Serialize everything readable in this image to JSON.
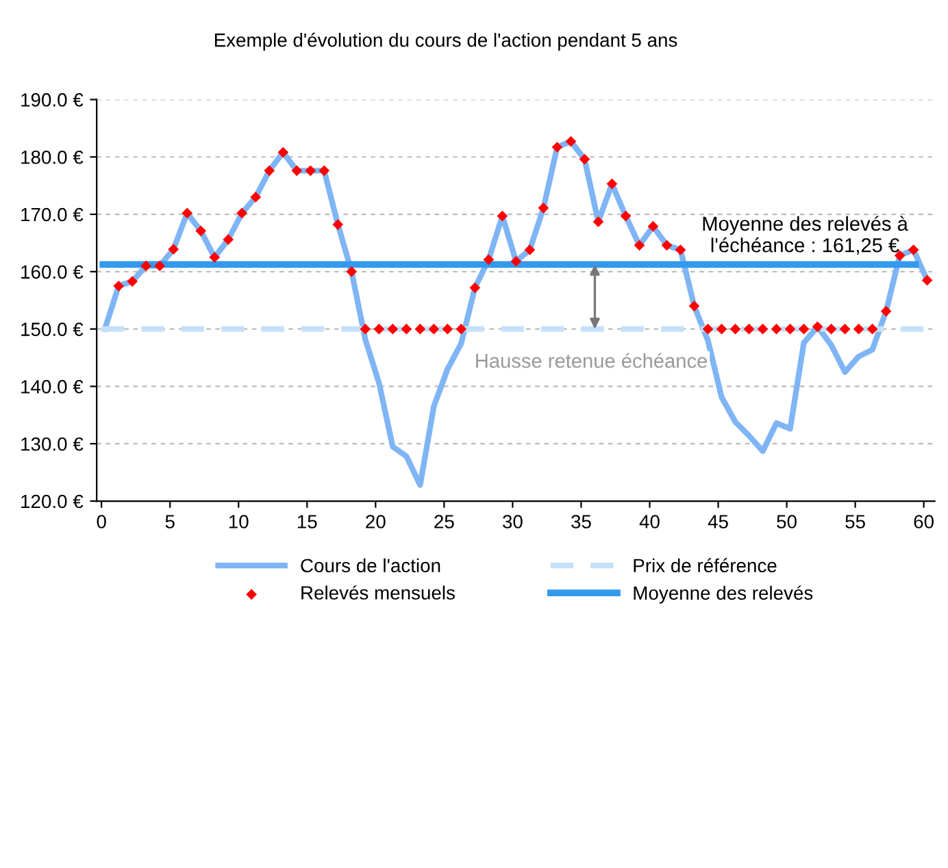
{
  "chart_data": {
    "type": "line",
    "title": "Exemple d'évolution du cours de l'action pendant 5 ans",
    "series": [
      {
        "name": "Cours de l'action",
        "color": "#7fb5f5",
        "marker": "none",
        "line_style": "solid",
        "x": [
          0.25,
          1.25,
          2.25,
          3.25,
          4.25,
          5.25,
          6.25,
          7.25,
          8.25,
          9.25,
          10.25,
          11.25,
          12.25,
          13.25,
          14.25,
          15.25,
          16.25,
          17.25,
          18.25,
          19.25,
          20.25,
          21.25,
          22.25,
          23.25,
          24.25,
          25.25,
          26.25,
          27.25,
          28.25,
          29.25,
          30.25,
          31.25,
          32.25,
          33.25,
          34.25,
          35.25,
          36.25,
          37.25,
          38.25,
          39.25,
          40.25,
          41.25,
          42.25,
          43.25,
          44.25,
          45.25,
          46.25,
          47.25,
          48.25,
          49.25,
          50.25,
          51.25,
          52.25,
          53.25,
          54.25,
          55.25,
          56.25,
          57.25,
          58.25,
          59.25,
          60.25
        ],
        "values": [
          150.0,
          157.5,
          158.3,
          161.0,
          161.0,
          163.9,
          170.2,
          167.1,
          162.5,
          165.6,
          170.2,
          173.0,
          177.6,
          180.8,
          177.6,
          177.6,
          177.6,
          168.2,
          160.0,
          148.2,
          140.6,
          129.5,
          127.8,
          122.8,
          136.5,
          143.0,
          147.5,
          157.2,
          162.1,
          169.7,
          161.8,
          163.8,
          171.1,
          181.7,
          182.7,
          179.6,
          168.7,
          175.3,
          169.7,
          164.6,
          167.9,
          164.6,
          163.8,
          154.0,
          148.0,
          138.1,
          133.8,
          131.4,
          128.7,
          133.6,
          132.6,
          147.6,
          150.4,
          147.2,
          142.5,
          145.2,
          146.4,
          153.1,
          162.8,
          163.8,
          158.5
        ]
      },
      {
        "name": "Prix de référence",
        "type": "line",
        "color": "#c5e0fa",
        "marker": "none",
        "line_style": "dashed",
        "x": [
          0,
          60.6
        ],
        "values": [
          150,
          150
        ]
      },
      {
        "name": "Relevés mensuels",
        "type": "scatter",
        "color": "#ff0000",
        "marker": "diamond",
        "x": [
          1.25,
          2.25,
          3.25,
          4.25,
          5.25,
          6.25,
          7.25,
          8.25,
          9.25,
          10.25,
          11.25,
          12.25,
          13.25,
          14.25,
          15.25,
          16.25,
          17.25,
          18.25,
          19.25,
          20.25,
          21.25,
          22.25,
          23.25,
          24.25,
          25.25,
          26.25,
          27.25,
          28.25,
          29.25,
          30.25,
          31.25,
          32.25,
          33.25,
          34.25,
          35.25,
          36.25,
          37.25,
          38.25,
          39.25,
          40.25,
          41.25,
          42.25,
          43.25,
          44.25,
          45.25,
          46.25,
          47.25,
          48.25,
          49.25,
          50.25,
          51.25,
          52.25,
          53.25,
          54.25,
          55.25,
          56.25,
          57.25,
          58.25,
          59.25,
          60.25
        ],
        "values": [
          157.5,
          158.3,
          161.0,
          161.0,
          163.9,
          170.2,
          167.1,
          162.5,
          165.6,
          170.2,
          173.0,
          177.6,
          180.8,
          177.6,
          177.6,
          177.6,
          168.2,
          160.0,
          150,
          150,
          150,
          150,
          150,
          150,
          150,
          150,
          157.2,
          162.1,
          169.7,
          161.8,
          163.8,
          171.1,
          181.7,
          182.7,
          179.6,
          168.7,
          175.3,
          169.7,
          164.6,
          167.9,
          164.6,
          163.8,
          154.0,
          150,
          150,
          150,
          150,
          150,
          150,
          150,
          150,
          150.4,
          150,
          150,
          150,
          150,
          153.1,
          162.8,
          163.8,
          158.5
        ]
      },
      {
        "name": "Moyenne des relevés",
        "color": "#3399ee",
        "marker": "none",
        "line_style": "solid",
        "x": [
          0.1,
          59.4
        ],
        "values": [
          161.25,
          161.25
        ]
      }
    ],
    "annotations": [
      "Moyenne des relevés à\nl'échéance : 161,25 €",
      "Hausse retenue échéance"
    ],
    "xlim": [
      -0.35,
      60.8
    ],
    "xticks": [
      0,
      5,
      10,
      15,
      20,
      25,
      30,
      35,
      40,
      45,
      50,
      55,
      60
    ],
    "ylim": [
      120,
      190
    ],
    "yticks": [
      {
        "value": 120,
        "label": "120.0 €"
      },
      {
        "value": 130,
        "label": "130.0 €"
      },
      {
        "value": 140,
        "label": "140.0 €"
      },
      {
        "value": 150,
        "label": "150.0 €"
      },
      {
        "value": 160,
        "label": "160.0 €"
      },
      {
        "value": 170,
        "label": "170.0 €"
      },
      {
        "value": 180,
        "label": "180.0 €"
      },
      {
        "value": 190,
        "label": "190.0 €"
      }
    ],
    "grid": "y",
    "legend": "bottom"
  }
}
